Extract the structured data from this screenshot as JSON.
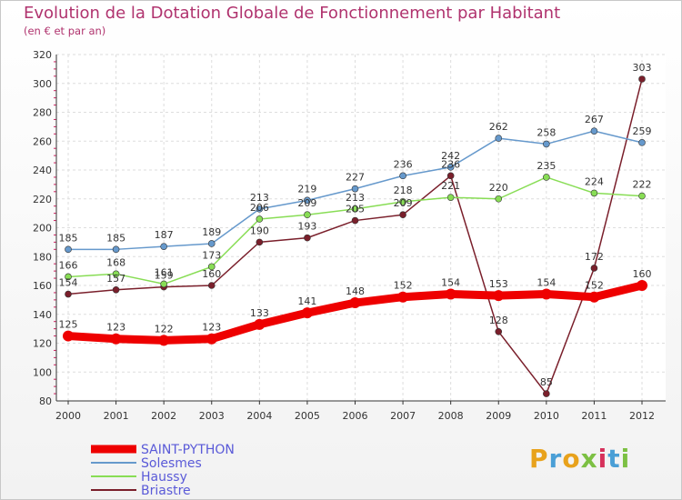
{
  "title": "Evolution de la Dotation Globale de Fonctionnement par Habitant",
  "subtitle": "(en € et par an)",
  "logo": {
    "text": "Proxiti",
    "colors": [
      "#e8a21c",
      "#4a9fd6",
      "#e8a21c",
      "#7cc043",
      "#d6315b",
      "#4a9fd6",
      "#7cc043"
    ]
  },
  "chart_data": {
    "type": "line",
    "title": "Evolution de la Dotation Globale de Fonctionnement par Habitant",
    "subtitle": "(en € et par an)",
    "xlabel": "",
    "ylabel": "",
    "x": [
      "2000",
      "2001",
      "2002",
      "2003",
      "2004",
      "2005",
      "2006",
      "2007",
      "2008",
      "2009",
      "2010",
      "2011",
      "2012"
    ],
    "ylim": [
      80,
      320
    ],
    "yticks": [
      "80",
      "100",
      "120",
      "140",
      "160",
      "180",
      "200",
      "220",
      "240",
      "260",
      "280",
      "300",
      "320"
    ],
    "grid": true,
    "legend": "bottom-left",
    "series": [
      {
        "name": "SAINT-PYTHON",
        "color": "#ee0000",
        "values": [
          125,
          123,
          122,
          123,
          133,
          141,
          148,
          152,
          154,
          153,
          154,
          152,
          160
        ]
      },
      {
        "name": "Solesmes",
        "color": "#6699cc",
        "values": [
          185,
          185,
          187,
          189,
          213,
          219,
          227,
          236,
          242,
          262,
          258,
          267,
          259
        ]
      },
      {
        "name": "Haussy",
        "color": "#88dd55",
        "values": [
          166,
          168,
          161,
          173,
          206,
          209,
          213,
          218,
          221,
          220,
          235,
          224,
          222
        ]
      },
      {
        "name": "Briastre",
        "color": "#7a1f2b",
        "values": [
          154,
          157,
          159,
          160,
          190,
          193,
          205,
          209,
          236,
          128,
          85,
          172,
          303
        ]
      }
    ]
  }
}
